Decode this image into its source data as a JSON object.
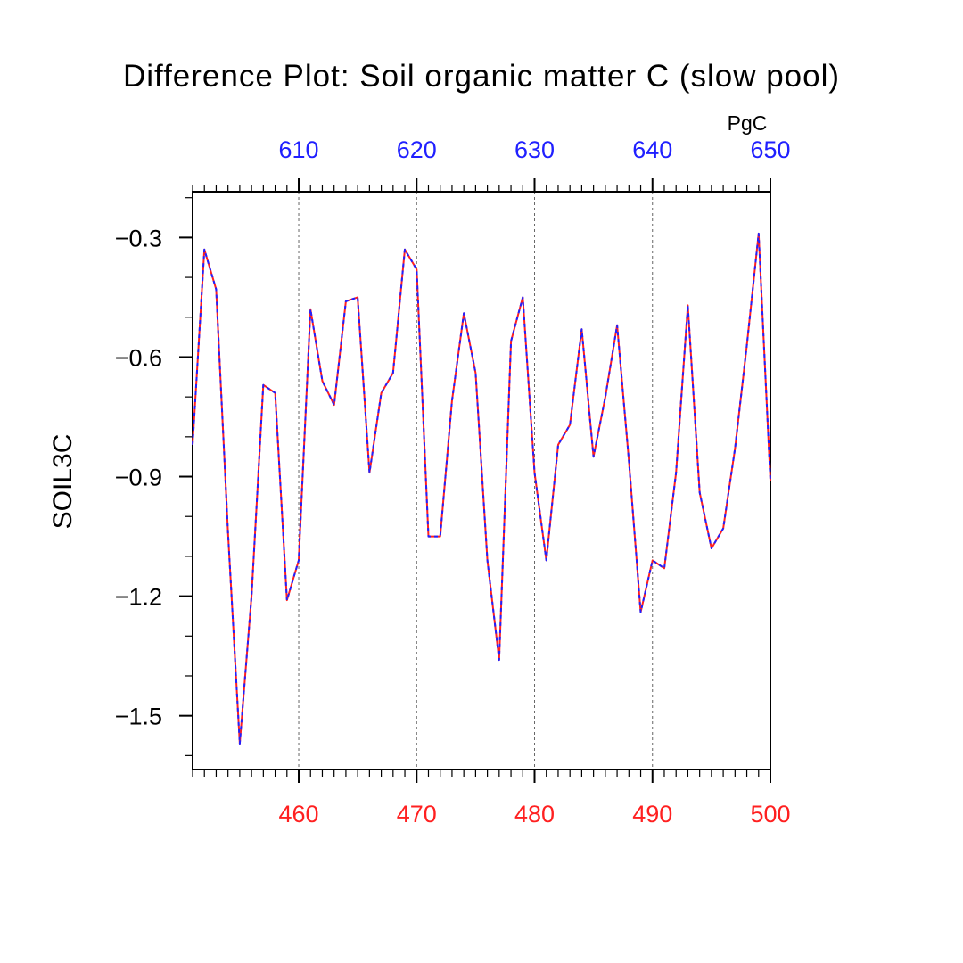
{
  "chart_data": {
    "type": "line",
    "title": "Difference Plot: Soil organic matter C (slow pool)",
    "ylabel": "SOIL3C",
    "top_axis_unit": "PgC",
    "x_bottom": {
      "range": [
        451,
        500
      ],
      "ticks": [
        460,
        470,
        480,
        490,
        500
      ],
      "tick_labels": [
        "460",
        "470",
        "480",
        "490",
        "500"
      ],
      "color": "#ff2020"
    },
    "x_top": {
      "range": [
        601,
        650
      ],
      "ticks": [
        610,
        620,
        630,
        640,
        650
      ],
      "tick_labels": [
        "610",
        "620",
        "630",
        "640",
        "650"
      ],
      "color": "#2020ff"
    },
    "y": {
      "range": [
        -1.635,
        -0.185
      ],
      "ticks": [
        -0.3,
        -0.6,
        -0.9,
        -1.2,
        -1.5
      ],
      "tick_labels": [
        "−0.3",
        "−0.6",
        "−0.9",
        "−1.2",
        "−1.5"
      ]
    },
    "grid": "vertical dashed at major x ticks",
    "series": [
      {
        "color": "#ff2020",
        "x": [
          451,
          452,
          453,
          454,
          455,
          456,
          457,
          458,
          459,
          460,
          461,
          462,
          463,
          464,
          465,
          466,
          467,
          468,
          469,
          470,
          471,
          472,
          473,
          474,
          475,
          476,
          477,
          478,
          479,
          480,
          481,
          482,
          483,
          484,
          485,
          486,
          487,
          488,
          489,
          490,
          491,
          492,
          493,
          494,
          495,
          496,
          497,
          498,
          499,
          500
        ],
        "values": [
          -0.82,
          -0.33,
          -0.43,
          -1.04,
          -1.57,
          -1.2,
          -0.67,
          -0.69,
          -1.21,
          -1.11,
          -0.48,
          -0.66,
          -0.72,
          -0.46,
          -0.45,
          -0.89,
          -0.69,
          -0.64,
          -0.33,
          -0.38,
          -1.05,
          -1.05,
          -0.71,
          -0.49,
          -0.64,
          -1.11,
          -1.36,
          -0.56,
          -0.45,
          -0.89,
          -1.11,
          -0.82,
          -0.77,
          -0.53,
          -0.85,
          -0.7,
          -0.52,
          -0.86,
          -1.24,
          -1.11,
          -1.13,
          -0.89,
          -0.47,
          -0.94,
          -1.08,
          -1.03,
          -0.83,
          -0.57,
          -0.29,
          -0.91
        ]
      },
      {
        "color": "#2020ff",
        "x": [
          601,
          602,
          603,
          604,
          605,
          606,
          607,
          608,
          609,
          610,
          611,
          612,
          613,
          614,
          615,
          616,
          617,
          618,
          619,
          620,
          621,
          622,
          623,
          624,
          625,
          626,
          627,
          628,
          629,
          630,
          631,
          632,
          633,
          634,
          635,
          636,
          637,
          638,
          639,
          640,
          641,
          642,
          643,
          644,
          645,
          646,
          647,
          648,
          649,
          650
        ],
        "values": [
          -0.82,
          -0.33,
          -0.43,
          -1.04,
          -1.57,
          -1.2,
          -0.67,
          -0.69,
          -1.21,
          -1.11,
          -0.48,
          -0.66,
          -0.72,
          -0.46,
          -0.45,
          -0.89,
          -0.69,
          -0.64,
          -0.33,
          -0.38,
          -1.05,
          -1.05,
          -0.71,
          -0.49,
          -0.64,
          -1.11,
          -1.36,
          -0.56,
          -0.45,
          -0.89,
          -1.11,
          -0.82,
          -0.77,
          -0.53,
          -0.85,
          -0.7,
          -0.52,
          -0.86,
          -1.24,
          -1.11,
          -1.13,
          -0.89,
          -0.47,
          -0.94,
          -1.08,
          -1.03,
          -0.83,
          -0.57,
          -0.29,
          -0.91
        ]
      }
    ]
  }
}
